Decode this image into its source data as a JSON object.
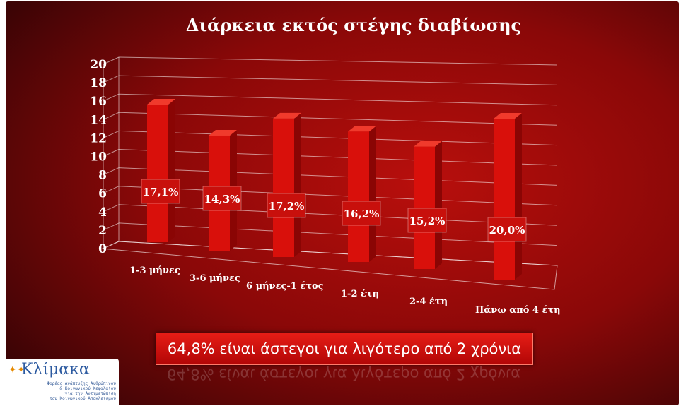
{
  "chart_data": {
    "type": "bar",
    "title": "Διάρκεια εκτός στέγης διαβίωσης",
    "categories": [
      "1-3 μήνες",
      "3-6 μήνες",
      "6 μήνες-1 έτος",
      "1-2 έτη",
      "2-4 έτη",
      "Πάνω από 4 έτη"
    ],
    "values": [
      17.1,
      14.3,
      17.2,
      16.2,
      15.2,
      20.0
    ],
    "data_labels": [
      "17,1%",
      "14,3%",
      "17,2%",
      "16,2%",
      "15,2%",
      "20,0%"
    ],
    "y_ticks": [
      "0",
      "2",
      "4",
      "6",
      "8",
      "10",
      "12",
      "14",
      "16",
      "18",
      "20"
    ],
    "ylim": [
      0,
      20
    ],
    "xlabel": "",
    "ylabel": "",
    "grid": true,
    "three_d": true,
    "colors": {
      "bar": "#d9100b",
      "bar_side": "#8a0504",
      "background": "#8e0909"
    }
  },
  "summary": {
    "text": "64,8%  είναι άστεγοι για λιγότερο από 2 χρόνια"
  },
  "logo": {
    "brand": "Κλίμακα",
    "mark_icon": "figures-icon",
    "tagline": "Φορέας Ανάπτυξης Ανθρώπινου\n& Κοινωνικού Κεφαλαίου\nγια την Αντιμετώπιση\nτου Κοινωνικού Αποκλεισμού"
  }
}
